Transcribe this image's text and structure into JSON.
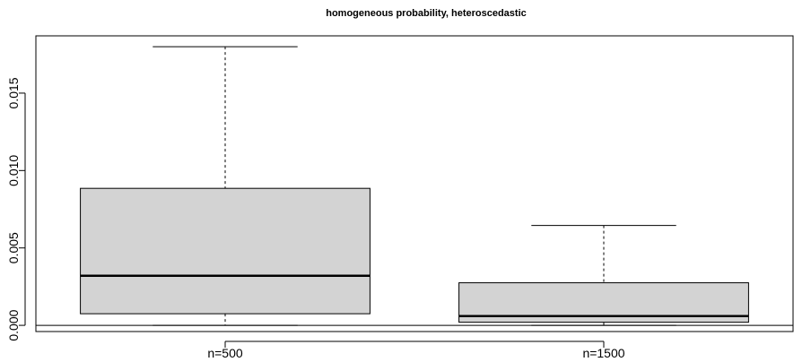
{
  "chart_data": {
    "type": "box",
    "title": "homogeneous probability, heteroscedastic",
    "xlabel": "",
    "ylabel": "",
    "categories": [
      "n=500",
      "n=1500"
    ],
    "boxes": [
      {
        "name": "n=500",
        "min": 0.0,
        "q1": 0.00075,
        "median": 0.0032,
        "q3": 0.00885,
        "max": 0.018
      },
      {
        "name": "n=1500",
        "min": 0.0,
        "q1": 0.0002,
        "median": 0.0006,
        "q3": 0.00275,
        "max": 0.00645
      }
    ],
    "ylim": [
      -0.0004,
      0.0187
    ],
    "yticks": [
      0.0,
      0.005,
      0.01,
      0.015
    ],
    "ytick_labels": [
      "0.000",
      "0.005",
      "0.010",
      "0.015"
    ],
    "reference_line_y": 0.0,
    "box_fill": "#d3d3d3",
    "line_color": "#000000",
    "grid": false
  }
}
